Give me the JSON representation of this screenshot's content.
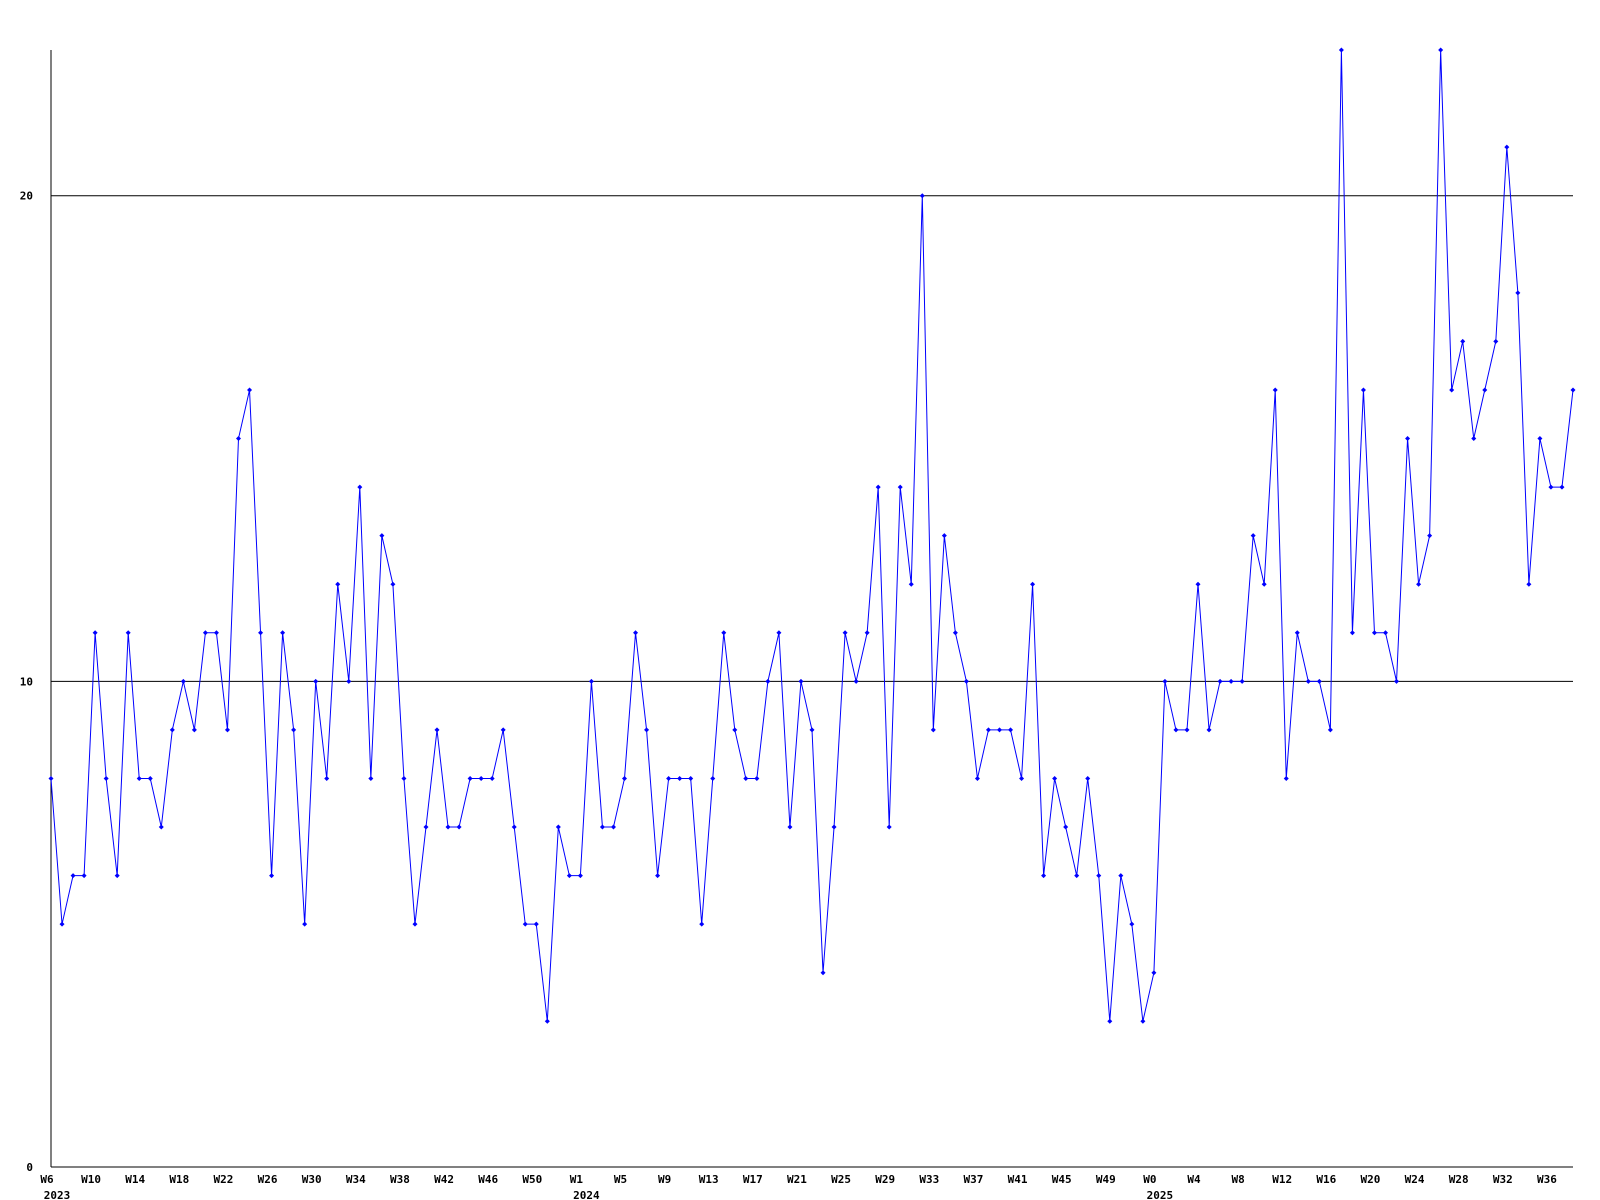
{
  "chart_data": {
    "type": "line",
    "categories": [
      "W6",
      null,
      null,
      null,
      "W10",
      null,
      null,
      null,
      "W14",
      null,
      null,
      null,
      "W18",
      null,
      null,
      null,
      "W22",
      null,
      null,
      null,
      "W26",
      null,
      null,
      null,
      "W30",
      null,
      null,
      null,
      "W34",
      null,
      null,
      null,
      "W38",
      null,
      null,
      null,
      "W42",
      null,
      null,
      null,
      "W46",
      null,
      null,
      null,
      "W50",
      null,
      null,
      null,
      "W1",
      null,
      null,
      null,
      "W5",
      null,
      null,
      null,
      "W9",
      null,
      null,
      null,
      "W13",
      null,
      null,
      null,
      "W17",
      null,
      null,
      null,
      "W21",
      null,
      null,
      null,
      "W25",
      null,
      null,
      null,
      "W29",
      null,
      null,
      null,
      "W33",
      null,
      null,
      null,
      "W37",
      null,
      null,
      null,
      "W41",
      null,
      null,
      null,
      "W45",
      null,
      null,
      null,
      "W49",
      null,
      null,
      null,
      "W0",
      null,
      null,
      null,
      "W4",
      null,
      null,
      null,
      "W8",
      null,
      null,
      null,
      "W12",
      null,
      null,
      null,
      "W16",
      null,
      null,
      null,
      "W20",
      null,
      null,
      null,
      "W24",
      null,
      null,
      null,
      "W28",
      null,
      null,
      null,
      "W32",
      null,
      null,
      null,
      "W36",
      null,
      null
    ],
    "years": [
      "2023",
      null,
      null,
      null,
      null,
      null,
      null,
      null,
      null,
      null,
      null,
      null,
      null,
      null,
      null,
      null,
      null,
      null,
      null,
      null,
      null,
      null,
      null,
      null,
      null,
      null,
      null,
      null,
      null,
      null,
      null,
      null,
      null,
      null,
      null,
      null,
      null,
      null,
      null,
      null,
      null,
      null,
      null,
      null,
      null,
      null,
      null,
      null,
      "2024",
      null,
      null,
      null,
      null,
      null,
      null,
      null,
      null,
      null,
      null,
      null,
      null,
      null,
      null,
      null,
      null,
      null,
      null,
      null,
      null,
      null,
      null,
      null,
      null,
      null,
      null,
      null,
      null,
      null,
      null,
      null,
      null,
      null,
      null,
      null,
      null,
      null,
      null,
      null,
      null,
      null,
      null,
      null,
      null,
      null,
      null,
      null,
      null,
      null,
      null,
      null,
      "2025",
      null,
      null,
      null,
      null,
      null,
      null,
      null,
      null,
      null,
      null,
      null,
      null,
      null,
      null,
      null,
      null,
      null,
      null,
      null,
      null,
      null,
      null,
      null,
      null,
      null,
      null,
      null,
      null,
      null,
      null,
      null,
      null,
      null,
      null,
      null,
      null,
      null,
      null
    ],
    "series": [
      {
        "color": "#0000ff",
        "values": [
          8,
          5,
          6,
          6,
          11,
          8,
          6,
          11,
          8,
          8,
          7,
          9,
          10,
          9,
          11,
          11,
          9,
          15,
          16,
          11,
          6,
          11,
          9,
          5,
          10,
          8,
          12,
          10,
          14,
          8,
          13,
          12,
          8,
          5,
          7,
          9,
          7,
          7,
          8,
          8,
          8,
          9,
          7,
          5,
          5,
          3,
          7,
          6,
          6,
          10,
          7,
          7,
          8,
          11,
          9,
          6,
          8,
          8,
          8,
          5,
          8,
          11,
          9,
          8,
          8,
          10,
          11,
          7,
          10,
          9,
          4,
          7,
          11,
          10,
          11,
          14,
          7,
          14,
          12,
          20,
          9,
          13,
          11,
          10,
          8,
          9,
          9,
          9,
          8,
          12,
          6,
          8,
          7,
          6,
          8,
          6,
          3,
          6,
          5,
          3,
          4,
          10,
          9,
          9,
          12,
          9,
          10,
          10,
          10,
          13,
          12,
          16,
          8,
          11,
          10,
          10,
          9,
          23,
          11,
          16,
          11,
          11,
          10,
          15,
          12,
          13,
          23,
          16,
          17,
          15,
          16,
          17,
          21,
          18,
          12,
          15,
          14,
          14,
          16
        ]
      }
    ],
    "ylim": [
      0,
      23
    ],
    "yticks": [
      0,
      10,
      20
    ],
    "grid": true,
    "grid_color": "#000000"
  }
}
